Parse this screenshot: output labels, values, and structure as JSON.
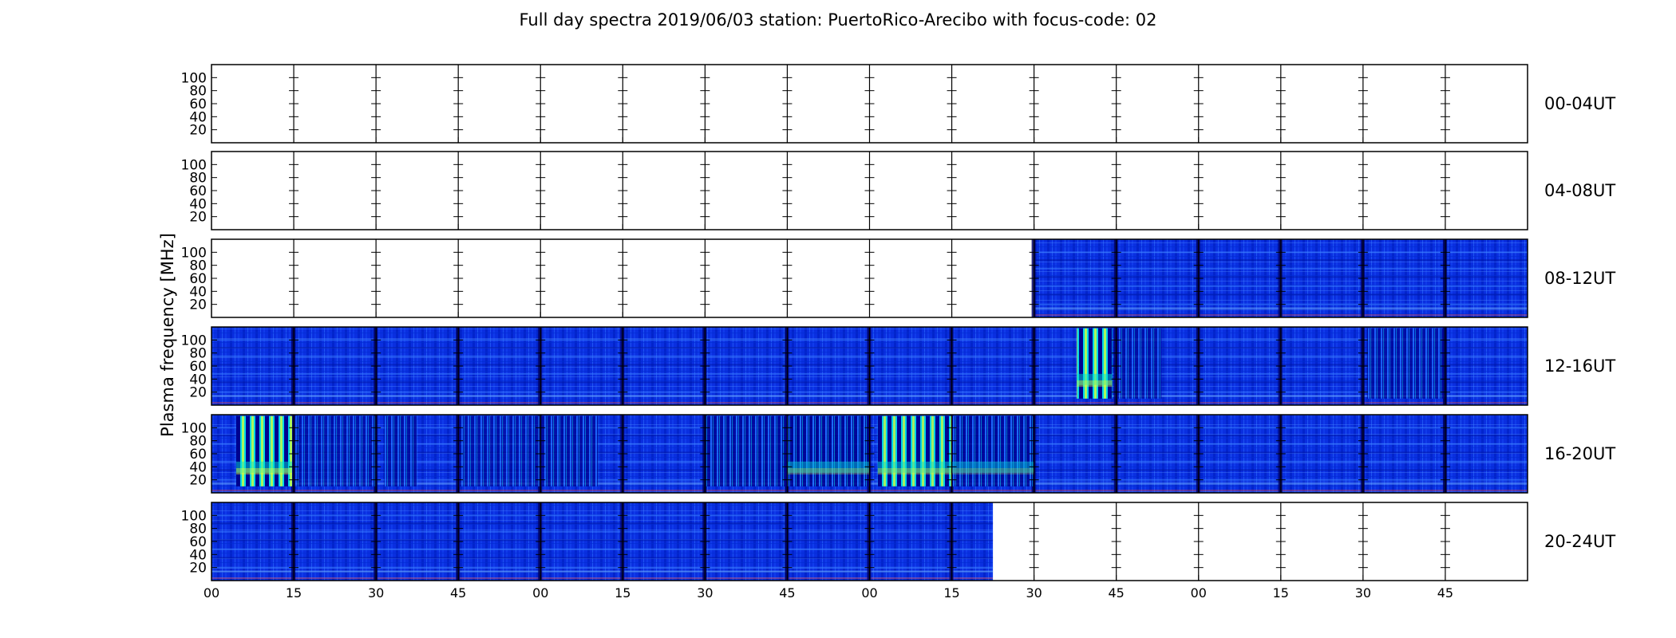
{
  "chart_data": {
    "type": "heatmap",
    "title": "Full day spectra 2019/06/03 station: PuertoRico-Arecibo with focus-code: 02",
    "ylabel": "Plasma frequency [MHz]",
    "xlabel": "",
    "y_ticks": [
      "20",
      "40",
      "60",
      "80",
      "100"
    ],
    "x_ticks": [
      "00",
      "15",
      "30",
      "45",
      "00",
      "15",
      "30",
      "45",
      "00",
      "15",
      "30",
      "45",
      "00",
      "15",
      "30",
      "45"
    ],
    "grid": false,
    "colormap": "jet",
    "colors": {
      "background": "#00008f",
      "dominant": "#0a2fe0",
      "highlight": "#00d6e6",
      "intense": "#d6ff3a",
      "missing": "#ffffff"
    },
    "segments_per_row": 16,
    "minutes_per_segment": 15,
    "rows": [
      {
        "label": "00-04UT",
        "data_start_segment": null,
        "data_end_segment": null,
        "bursts": []
      },
      {
        "label": "04-08UT",
        "data_start_segment": null,
        "data_end_segment": null,
        "bursts": []
      },
      {
        "label": "08-12UT",
        "data_start_segment": 10,
        "data_end_segment": 16,
        "bursts": []
      },
      {
        "label": "12-16UT",
        "data_start_segment": 0,
        "data_end_segment": 16,
        "bursts": [
          {
            "segment": 10,
            "start": 0.52,
            "end": 0.95,
            "strength": 0.95
          },
          {
            "segment": 11,
            "start": 0.0,
            "end": 0.55,
            "strength": 0.35
          },
          {
            "segment": 14,
            "start": 0.05,
            "end": 0.98,
            "strength": 0.4
          }
        ]
      },
      {
        "label": "16-20UT",
        "data_start_segment": 0,
        "data_end_segment": 16,
        "bursts": [
          {
            "segment": 0,
            "start": 0.3,
            "end": 0.98,
            "strength": 1.0
          },
          {
            "segment": 1,
            "start": 0.0,
            "end": 1.0,
            "strength": 0.3
          },
          {
            "segment": 2,
            "start": 0.1,
            "end": 0.5,
            "strength": 0.4
          },
          {
            "segment": 3,
            "start": 0.0,
            "end": 1.0,
            "strength": 0.3
          },
          {
            "segment": 4,
            "start": 0.0,
            "end": 0.7,
            "strength": 0.45
          },
          {
            "segment": 6,
            "start": 0.0,
            "end": 1.0,
            "strength": 0.55
          },
          {
            "segment": 7,
            "start": 0.0,
            "end": 1.0,
            "strength": 0.7
          },
          {
            "segment": 8,
            "start": 0.1,
            "end": 1.0,
            "strength": 0.85
          },
          {
            "segment": 9,
            "start": 0.0,
            "end": 1.0,
            "strength": 0.6
          }
        ]
      },
      {
        "label": "20-24UT",
        "data_start_segment": 0,
        "data_end_segment": 9.5,
        "bursts": []
      }
    ]
  }
}
